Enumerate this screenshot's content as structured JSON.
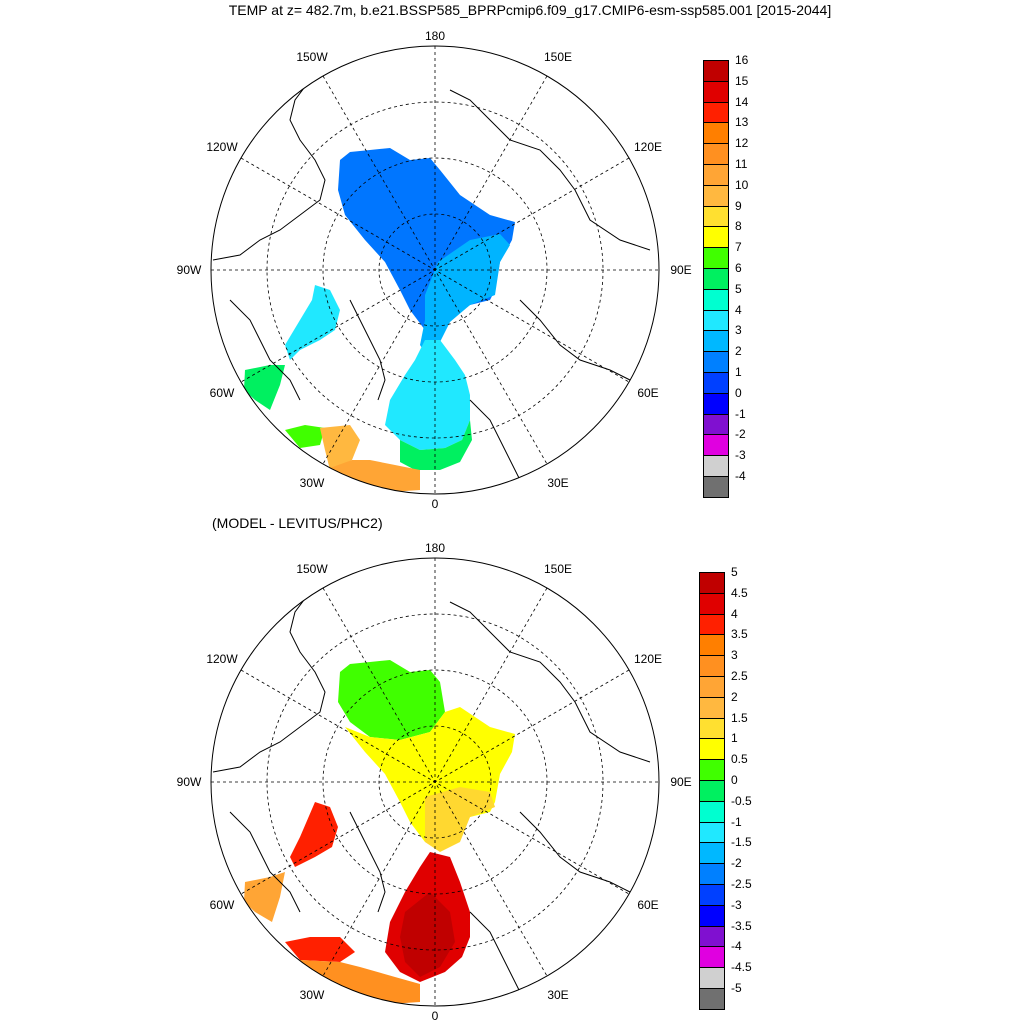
{
  "title": "TEMP at z= 482.7m, b.e21.BSSP585_BPRPcmip6.f09_g17.CMIP6-esm-ssp585.001 [2015-2044]",
  "subtitle": "(MODEL - LEVITUS/PHC2)",
  "longitude_labels": [
    {
      "text": "180",
      "angle": 180
    },
    {
      "text": "150E",
      "angle": 150
    },
    {
      "text": "120E",
      "angle": 120
    },
    {
      "text": "90E",
      "angle": 90
    },
    {
      "text": "60E",
      "angle": 60
    },
    {
      "text": "30E",
      "angle": 30
    },
    {
      "text": "0",
      "angle": 0
    },
    {
      "text": "30W",
      "angle": -30
    },
    {
      "text": "60W",
      "angle": -60
    },
    {
      "text": "90W",
      "angle": -90
    },
    {
      "text": "120W",
      "angle": -120
    },
    {
      "text": "150W",
      "angle": -150
    }
  ],
  "panels": [
    {
      "id": "top",
      "colorbar": {
        "labels": [
          "16",
          "15",
          "14",
          "13",
          "12",
          "11",
          "10",
          "9",
          "8",
          "7",
          "6",
          "5",
          "4",
          "3",
          "2",
          "1",
          "0",
          "-1",
          "-2",
          "-3",
          "-4"
        ],
        "colors": [
          "#c00000",
          "#e00000",
          "#ff2000",
          "#ff7f00",
          "#ff9020",
          "#ffa535",
          "#ffb840",
          "#ffe030",
          "#ffff00",
          "#40ff00",
          "#00f060",
          "#00ffd0",
          "#20e8ff",
          "#00b8ff",
          "#0080ff",
          "#0040ff",
          "#0000ff",
          "#8010d0",
          "#e000e0",
          "#d0d0d0",
          "#707070"
        ]
      }
    },
    {
      "id": "bottom",
      "colorbar": {
        "labels": [
          "5",
          "4.5",
          "4",
          "3.5",
          "3",
          "2.5",
          "2",
          "1.5",
          "1",
          "0.5",
          "0",
          "-0.5",
          "-1",
          "-1.5",
          "-2",
          "-2.5",
          "-3",
          "-3.5",
          "-4",
          "-4.5",
          "-5"
        ],
        "colors": [
          "#c00000",
          "#e00000",
          "#ff2000",
          "#ff7f00",
          "#ff9020",
          "#ffa535",
          "#ffb840",
          "#ffe030",
          "#ffff00",
          "#40ff00",
          "#00f060",
          "#00ffd0",
          "#20e8ff",
          "#00b8ff",
          "#0080ff",
          "#0040ff",
          "#0000ff",
          "#8010d0",
          "#e000e0",
          "#d0d0d0",
          "#707070"
        ]
      }
    }
  ]
}
